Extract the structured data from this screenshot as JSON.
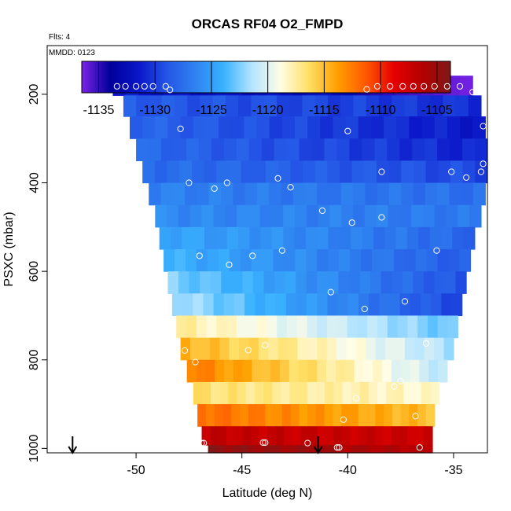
{
  "chart_data": {
    "type": "heatmap",
    "title": "ORCAS RF04 O2_FMPD",
    "flights_note": "Flts: 4",
    "date_note": "MMDD: 0123",
    "xlabel": "Latitude (deg N)",
    "ylabel": "PSXC (mbar)",
    "xlim": [
      -54.2,
      -33.4
    ],
    "ylim": [
      1010,
      90
    ],
    "x_ticks": [
      -50,
      -45,
      -40,
      -35
    ],
    "x_tick_labels": [
      "-50",
      "-45",
      "-40",
      "-35"
    ],
    "y_ticks": [
      200,
      400,
      600,
      800,
      1000
    ],
    "y_tick_labels": [
      "200",
      "400",
      "600",
      "800",
      "1000"
    ],
    "colorbar": {
      "range": [
        -1136.5,
        -1103.8
      ],
      "ticks": [
        -1135,
        -1130,
        -1125,
        -1120,
        -1115,
        -1110,
        -1105
      ],
      "tick_labels": [
        "-1135",
        "-1130",
        "-1125",
        "-1120",
        "-1115",
        "-1110",
        "-1105"
      ],
      "colors": [
        "#7b22e6",
        "#00009a",
        "#0a16c8",
        "#2455e6",
        "#2f82f0",
        "#39b2ff",
        "#b4e4ff",
        "#fffde6",
        "#ffe066",
        "#ffa000",
        "#ff5a00",
        "#e60000",
        "#b40000",
        "#7f1818"
      ]
    },
    "rows": [
      {
        "p": 180,
        "lat_min": -51.1,
        "lat_max": -34.1,
        "left": -1131.5,
        "right": -1133,
        "accent": "right-violet"
      },
      {
        "p": 225,
        "lat_min": -50.6,
        "lat_max": -33.7,
        "left": -1128.5,
        "right": -1130.5
      },
      {
        "p": 275,
        "lat_min": -50.3,
        "lat_max": -33.5,
        "left": -1128,
        "right": -1131.5
      },
      {
        "p": 325,
        "lat_min": -50.0,
        "lat_max": -33.4,
        "left": -1127.8,
        "right": -1131
      },
      {
        "p": 375,
        "lat_min": -49.7,
        "lat_max": -33.4,
        "left": -1127.5,
        "right": -1129.5
      },
      {
        "p": 425,
        "lat_min": -49.4,
        "lat_max": -33.5,
        "left": -1126.5,
        "right": -1127.5
      },
      {
        "p": 475,
        "lat_min": -49.1,
        "lat_max": -33.7,
        "left": -1126,
        "right": -1127
      },
      {
        "p": 525,
        "lat_min": -48.9,
        "lat_max": -34.0,
        "left": -1124.5,
        "right": -1128
      },
      {
        "p": 575,
        "lat_min": -48.7,
        "lat_max": -34.2,
        "left": -1124,
        "right": -1128.5
      },
      {
        "p": 625,
        "lat_min": -48.5,
        "lat_max": -34.4,
        "left": -1122.5,
        "right": -1129
      },
      {
        "p": 675,
        "lat_min": -48.3,
        "lat_max": -34.6,
        "left": -1121.5,
        "right": -1129.5
      },
      {
        "p": 725,
        "lat_min": -48.1,
        "lat_max": -34.8,
        "left": -1117.5,
        "right": -1123
      },
      {
        "p": 775,
        "lat_min": -47.9,
        "lat_max": -35.0,
        "left": -1114.5,
        "right": -1121.5
      },
      {
        "p": 825,
        "lat_min": -47.6,
        "lat_max": -35.3,
        "left": -1112.5,
        "right": -1121
      },
      {
        "p": 875,
        "lat_min": -47.3,
        "lat_max": -35.7,
        "left": -1116.5,
        "right": -1118.5
      },
      {
        "p": 925,
        "lat_min": -47.1,
        "lat_max": -35.9,
        "left": -1112,
        "right": -1115
      },
      {
        "p": 975,
        "lat_min": -46.9,
        "lat_max": -36.0,
        "left": -1107,
        "right": -1107.5
      },
      {
        "p": 1010,
        "lat_min": -46.6,
        "lat_max": -36.0,
        "left": -1104.5,
        "right": -1106.5
      }
    ],
    "points": [
      [
        -50.9,
        182
      ],
      [
        -50.5,
        182
      ],
      [
        -50.0,
        182
      ],
      [
        -49.6,
        182
      ],
      [
        -49.2,
        182
      ],
      [
        -48.6,
        182
      ],
      [
        -48.4,
        190
      ],
      [
        -39.1,
        189
      ],
      [
        -38.6,
        182
      ],
      [
        -38.0,
        182
      ],
      [
        -37.4,
        182
      ],
      [
        -36.9,
        182
      ],
      [
        -36.4,
        182
      ],
      [
        -35.9,
        182
      ],
      [
        -35.3,
        182
      ],
      [
        -34.7,
        182
      ],
      [
        -34.1,
        195
      ],
      [
        -47.9,
        278
      ],
      [
        -40.0,
        283
      ],
      [
        -33.6,
        272
      ],
      [
        -47.5,
        400
      ],
      [
        -46.3,
        413
      ],
      [
        -45.7,
        400
      ],
      [
        -43.3,
        390
      ],
      [
        -42.7,
        410
      ],
      [
        -38.4,
        375
      ],
      [
        -35.1,
        375
      ],
      [
        -34.4,
        388
      ],
      [
        -33.7,
        375
      ],
      [
        -33.6,
        357
      ],
      [
        -41.2,
        463
      ],
      [
        -39.8,
        490
      ],
      [
        -38.4,
        478
      ],
      [
        -47.0,
        565
      ],
      [
        -45.6,
        585
      ],
      [
        -44.5,
        565
      ],
      [
        -43.1,
        553
      ],
      [
        -35.8,
        553
      ],
      [
        -40.8,
        647
      ],
      [
        -39.2,
        685
      ],
      [
        -37.3,
        668
      ],
      [
        -47.7,
        779
      ],
      [
        -47.2,
        805
      ],
      [
        -44.7,
        778
      ],
      [
        -43.9,
        767
      ],
      [
        -36.3,
        763
      ],
      [
        -37.8,
        860
      ],
      [
        -37.5,
        848
      ],
      [
        -39.6,
        887
      ],
      [
        -36.8,
        927
      ],
      [
        -40.2,
        935
      ],
      [
        -46.9,
        988
      ],
      [
        -46.8,
        988
      ],
      [
        -44.0,
        987
      ],
      [
        -43.9,
        987
      ],
      [
        -41.9,
        988
      ],
      [
        -40.5,
        998
      ],
      [
        -40.4,
        998
      ],
      [
        -36.6,
        998
      ]
    ],
    "arrows": [
      -53.0,
      -41.4
    ]
  }
}
